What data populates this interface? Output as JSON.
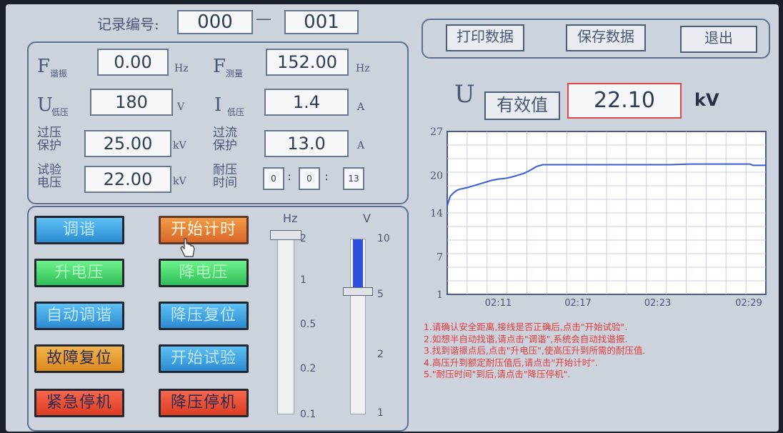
{
  "record": {
    "label": "记录编号:",
    "start": "000",
    "dash": "—",
    "end": "001"
  },
  "params": {
    "f_res": {
      "main": "F",
      "sub": "谐振",
      "value": "0.00",
      "unit": "Hz"
    },
    "f_meas": {
      "main": "F",
      "sub": "测量",
      "value": "152.00",
      "unit": "Hz"
    },
    "u_low": {
      "main": "U",
      "sub": "低压",
      "value": "180",
      "unit": "V"
    },
    "i_low": {
      "main": "I",
      "sub": "低压",
      "value": "1.4",
      "unit": "A"
    },
    "over_voltage": {
      "line1": "过压",
      "line2": "保护",
      "value": "25.00",
      "unit": "kV"
    },
    "over_current": {
      "line1": "过流",
      "line2": "保护",
      "value": "13.0",
      "unit": "A"
    },
    "test_voltage": {
      "line1": "试验",
      "line2": "电压",
      "value": "22.00",
      "unit": "kV"
    },
    "withstand_time": {
      "line1": "耐压",
      "line2": "时间",
      "h": "0",
      "m": "0",
      "s": "13",
      "sep": ":"
    }
  },
  "controls": {
    "btn_tune": "调谐",
    "btn_start_timer": "开始计时",
    "btn_raise": "升电压",
    "btn_lower": "降电压",
    "btn_auto": "自动调谐",
    "btn_reset_auto": "降压复位",
    "btn_fault_reset": "故障复位",
    "btn_start_test": "开始试验",
    "btn_estop": "紧急停机",
    "btn_lower_stop": "降压停机"
  },
  "sliders": {
    "hz": {
      "label": "Hz",
      "ticks": [
        "2",
        "1",
        "0.5",
        "0.2",
        "0.1"
      ]
    },
    "v": {
      "label": "V",
      "ticks": [
        "10",
        "5",
        "2",
        "1"
      ],
      "level": 0.3
    }
  },
  "toolbar": {
    "print": "打印数据",
    "save": "保存数据",
    "exit": "退出"
  },
  "readout": {
    "symbol": "U",
    "mode": "有效值",
    "value": "22.10",
    "unit": "kV"
  },
  "chart_data": {
    "type": "line",
    "y_ticks": [
      "27",
      "20",
      "14",
      "7",
      "1"
    ],
    "x_ticks": [
      "02:11",
      "02:17",
      "02:23",
      "02:29"
    ],
    "ylim": [
      1,
      27
    ],
    "xlim": [
      0,
      1
    ],
    "series": [
      {
        "color": "#3a5bd9",
        "x": [
          0,
          0.005,
          0.01,
          0.02,
          0.03,
          0.04,
          0.06,
          0.08,
          0.1,
          0.12,
          0.14,
          0.16,
          0.18,
          0.2,
          0.22,
          0.24,
          0.26,
          0.28,
          0.3,
          0.5,
          0.7,
          0.76,
          0.8,
          0.9,
          0.95,
          0.96,
          1.0
        ],
        "y": [
          15.1,
          16.0,
          16.7,
          17.2,
          17.6,
          17.8,
          18.0,
          18.3,
          18.6,
          18.9,
          19.2,
          19.4,
          19.5,
          19.7,
          20.0,
          20.3,
          20.8,
          21.4,
          21.7,
          21.7,
          21.7,
          21.8,
          21.8,
          21.8,
          21.8,
          21.6,
          21.6
        ]
      }
    ],
    "grid": true
  },
  "instructions": [
    "1.请确认安全距离,接线是否正确后,点击\"开始试验\".",
    "2.如想半自动找谐,请点击\"调谐\",系统会自动找谐振.",
    "3.找到谐振点后,点击\"升电压\",使高压升到所需的耐压值.",
    "4.高压升到额定耐压值后,请点击\"开始计时\".",
    "5.\"耐压时间\"到后,请点击\"降压停机\"."
  ],
  "colors": {
    "panel_bg": "#cdd3dd",
    "chart_line": "#3a5bd9",
    "instruction_text": "#e23b3b",
    "readout_border": "#e04848"
  }
}
